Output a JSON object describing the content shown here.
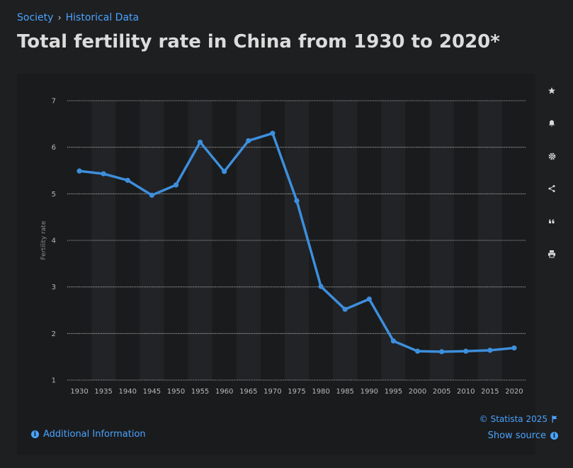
{
  "breadcrumb": {
    "items": [
      "Society",
      "Historical Data"
    ],
    "separator": "›"
  },
  "page": {
    "title": "Total fertility rate in China from 1930 to 2020*"
  },
  "footer": {
    "additional_info": "Additional Information",
    "copyright": "© Statista 2025",
    "show_source": "Show source"
  },
  "toolbar": {
    "icons": [
      "star-icon",
      "bell-icon",
      "gear-icon",
      "share-icon",
      "quote-icon",
      "print-icon"
    ]
  },
  "colors": {
    "line": "#3d8fdd",
    "link": "#4aa3ff",
    "background": "#1e1f21"
  },
  "chart_data": {
    "type": "line",
    "title": "",
    "xlabel": "",
    "ylabel": "Fertility rate",
    "ylim": [
      1,
      7
    ],
    "yticks": [
      1,
      2,
      3,
      4,
      5,
      6,
      7
    ],
    "grid": true,
    "categories": [
      "1930",
      "1935",
      "1940",
      "1945",
      "1950",
      "1955",
      "1960",
      "1965",
      "1970",
      "1975",
      "1980",
      "1985",
      "1990",
      "1995",
      "2000",
      "2005",
      "2010",
      "2015",
      "2020"
    ],
    "series": [
      {
        "values": [
          5.49,
          5.43,
          5.29,
          4.97,
          5.19,
          6.11,
          5.48,
          6.14,
          6.3,
          4.85,
          3.01,
          2.52,
          2.74,
          1.84,
          1.62,
          1.61,
          1.62,
          1.64,
          1.69
        ]
      }
    ]
  }
}
